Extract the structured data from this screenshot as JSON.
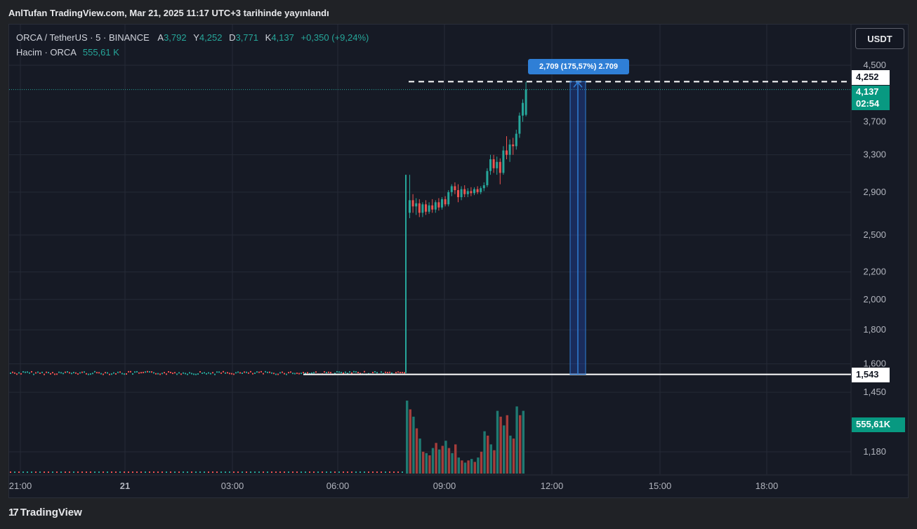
{
  "header": {
    "publish_text": "AnlTufan TradingView.com, Mar 21, 2025 11:17 UTC+3 tarihinde yayınlandı"
  },
  "legend": {
    "symbol": "ORCA / TetherUS · 5 · BINANCE",
    "open_label": "A",
    "open": "3,792",
    "high_label": "Y",
    "high": "4,252",
    "low_label": "D",
    "low": "3,771",
    "close_label": "K",
    "close": "4,137",
    "change": "+0,350 (+9,24%)",
    "volume_label": "Hacim · ORCA",
    "volume": "555,61 K"
  },
  "currency_button": "USDT",
  "price_axis": {
    "ticks": [
      "4,500",
      "3,700",
      "3,300",
      "2,900",
      "2,500",
      "2,200",
      "2,000",
      "1,800",
      "1,600",
      "1,450",
      "1,180"
    ]
  },
  "time_axis": {
    "ticks": [
      "21:00",
      "21",
      "03:00",
      "06:00",
      "09:00",
      "12:00",
      "15:00",
      "18:00"
    ]
  },
  "price_tags": {
    "high_line": "4,252",
    "current_price": "4,137",
    "countdown": "02:54",
    "low_line": "1,543",
    "volume": "555,61K"
  },
  "measure_tool": {
    "label": "2,709 (175,57%) 2.709"
  },
  "footer": {
    "brand": "TradingView",
    "logo_mark": "17"
  },
  "colors": {
    "up": "#26a69a",
    "down": "#ef5350",
    "background": "#161a25",
    "measure": "#2f7fd6"
  },
  "chart_data": {
    "type": "candlestick",
    "title": "ORCA / TetherUS · 5 · BINANCE",
    "ylabel": "USDT",
    "ylim": [
      1.1,
      4.6
    ],
    "y_scale": "log",
    "grid": true,
    "candles_pre_listing_price": 1.55,
    "candles": [
      {
        "o": 2.7,
        "h": 3.08,
        "l": 2.65,
        "c": 2.82
      },
      {
        "o": 2.82,
        "h": 2.88,
        "l": 2.7,
        "c": 2.76
      },
      {
        "o": 2.76,
        "h": 2.84,
        "l": 2.68,
        "c": 2.79
      },
      {
        "o": 2.79,
        "h": 2.83,
        "l": 2.66,
        "c": 2.7
      },
      {
        "o": 2.7,
        "h": 2.8,
        "l": 2.66,
        "c": 2.78
      },
      {
        "o": 2.78,
        "h": 2.82,
        "l": 2.68,
        "c": 2.71
      },
      {
        "o": 2.71,
        "h": 2.8,
        "l": 2.69,
        "c": 2.77
      },
      {
        "o": 2.77,
        "h": 2.83,
        "l": 2.7,
        "c": 2.73
      },
      {
        "o": 2.73,
        "h": 2.82,
        "l": 2.7,
        "c": 2.8
      },
      {
        "o": 2.8,
        "h": 2.84,
        "l": 2.72,
        "c": 2.75
      },
      {
        "o": 2.75,
        "h": 2.85,
        "l": 2.73,
        "c": 2.83
      },
      {
        "o": 2.83,
        "h": 2.86,
        "l": 2.76,
        "c": 2.78
      },
      {
        "o": 2.78,
        "h": 2.92,
        "l": 2.76,
        "c": 2.9
      },
      {
        "o": 2.9,
        "h": 2.98,
        "l": 2.86,
        "c": 2.96
      },
      {
        "o": 2.96,
        "h": 3.0,
        "l": 2.88,
        "c": 2.92
      },
      {
        "o": 2.92,
        "h": 2.98,
        "l": 2.8,
        "c": 2.85
      },
      {
        "o": 2.85,
        "h": 2.96,
        "l": 2.82,
        "c": 2.93
      },
      {
        "o": 2.93,
        "h": 2.97,
        "l": 2.85,
        "c": 2.88
      },
      {
        "o": 2.88,
        "h": 2.94,
        "l": 2.85,
        "c": 2.91
      },
      {
        "o": 2.91,
        "h": 2.95,
        "l": 2.86,
        "c": 2.89
      },
      {
        "o": 2.89,
        "h": 2.95,
        "l": 2.87,
        "c": 2.93
      },
      {
        "o": 2.93,
        "h": 2.96,
        "l": 2.88,
        "c": 2.9
      },
      {
        "o": 2.9,
        "h": 2.96,
        "l": 2.88,
        "c": 2.94
      },
      {
        "o": 2.94,
        "h": 3.0,
        "l": 2.91,
        "c": 2.97
      },
      {
        "o": 2.97,
        "h": 3.15,
        "l": 2.95,
        "c": 3.12
      },
      {
        "o": 3.12,
        "h": 3.3,
        "l": 3.08,
        "c": 3.25
      },
      {
        "o": 3.25,
        "h": 3.3,
        "l": 3.1,
        "c": 3.15
      },
      {
        "o": 3.15,
        "h": 3.28,
        "l": 3.08,
        "c": 3.22
      },
      {
        "o": 3.22,
        "h": 3.26,
        "l": 2.98,
        "c": 3.1
      },
      {
        "o": 3.1,
        "h": 3.4,
        "l": 3.08,
        "c": 3.35
      },
      {
        "o": 3.35,
        "h": 3.52,
        "l": 3.25,
        "c": 3.3
      },
      {
        "o": 3.3,
        "h": 3.48,
        "l": 3.22,
        "c": 3.42
      },
      {
        "o": 3.42,
        "h": 3.5,
        "l": 3.3,
        "c": 3.4
      },
      {
        "o": 3.4,
        "h": 3.6,
        "l": 3.36,
        "c": 3.55
      },
      {
        "o": 3.55,
        "h": 3.82,
        "l": 3.5,
        "c": 3.78
      },
      {
        "o": 3.78,
        "h": 4.0,
        "l": 3.7,
        "c": 3.95
      },
      {
        "o": 3.79,
        "h": 4.25,
        "l": 3.77,
        "c": 4.14
      }
    ],
    "volume": {
      "pre_listing_level": "near zero",
      "bars": [
        {
          "v": 1.0,
          "up": true
        },
        {
          "v": 0.88,
          "up": false
        },
        {
          "v": 0.78,
          "up": true
        },
        {
          "v": 0.62,
          "up": false
        },
        {
          "v": 0.48,
          "up": true
        },
        {
          "v": 0.3,
          "up": false
        },
        {
          "v": 0.28,
          "up": true
        },
        {
          "v": 0.25,
          "up": false
        },
        {
          "v": 0.35,
          "up": true
        },
        {
          "v": 0.42,
          "up": false
        },
        {
          "v": 0.33,
          "up": true
        },
        {
          "v": 0.38,
          "up": false
        },
        {
          "v": 0.45,
          "up": true
        },
        {
          "v": 0.35,
          "up": false
        },
        {
          "v": 0.28,
          "up": true
        },
        {
          "v": 0.4,
          "up": false
        },
        {
          "v": 0.22,
          "up": true
        },
        {
          "v": 0.18,
          "up": false
        },
        {
          "v": 0.15,
          "up": true
        },
        {
          "v": 0.18,
          "up": false
        },
        {
          "v": 0.2,
          "up": true
        },
        {
          "v": 0.16,
          "up": false
        },
        {
          "v": 0.22,
          "up": true
        },
        {
          "v": 0.3,
          "up": false
        },
        {
          "v": 0.58,
          "up": true
        },
        {
          "v": 0.52,
          "up": false
        },
        {
          "v": 0.4,
          "up": true
        },
        {
          "v": 0.32,
          "up": false
        },
        {
          "v": 0.86,
          "up": true
        },
        {
          "v": 0.78,
          "up": false
        },
        {
          "v": 0.66,
          "up": true
        },
        {
          "v": 0.8,
          "up": false
        },
        {
          "v": 0.52,
          "up": true
        },
        {
          "v": 0.48,
          "up": false
        },
        {
          "v": 0.92,
          "up": true
        },
        {
          "v": 0.8,
          "up": false
        },
        {
          "v": 0.86,
          "up": true
        }
      ]
    },
    "horizontal_lines": [
      4.252,
      1.543
    ],
    "measure": {
      "from": 1.543,
      "to": 4.252,
      "change": "2,709 (175,57%) 2.709"
    }
  }
}
